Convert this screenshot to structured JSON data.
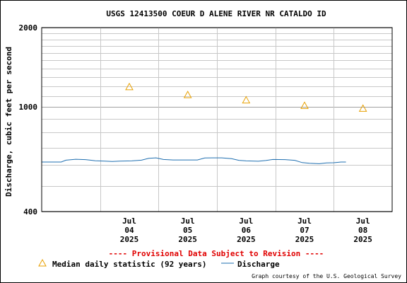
{
  "chart_data": {
    "type": "line",
    "title": "USGS 12413500 COEUR D ALENE RIVER NR CATALDO ID",
    "ylabel": "Discharge, cubic feet per second",
    "yscale": "log",
    "ylim": [
      400,
      2000
    ],
    "y_tick_labels": [
      "2000",
      "1000",
      "400"
    ],
    "y_ticks": [
      2000,
      1000,
      400
    ],
    "y_minor_gridlines": [
      500,
      600,
      700,
      800,
      900,
      1100,
      1200,
      1300,
      1400,
      1500,
      1600,
      1700,
      1800,
      1900
    ],
    "x_ticks": [
      {
        "month": "Jul",
        "day": "04",
        "year": "2025"
      },
      {
        "month": "Jul",
        "day": "05",
        "year": "2025"
      },
      {
        "month": "Jul",
        "day": "06",
        "year": "2025"
      },
      {
        "month": "Jul",
        "day": "07",
        "year": "2025"
      },
      {
        "month": "Jul",
        "day": "08",
        "year": "2025"
      }
    ],
    "xlim": [
      "2025-07-03 00:00",
      "2025-07-09 00:00"
    ],
    "grid": true,
    "legend_position": "bottom",
    "notice": "---- Provisional Data Subject to Revision ----",
    "series": [
      {
        "name": "Median daily statistic (92 years)",
        "marker": "triangle",
        "color": "#E8A000",
        "points": [
          {
            "x": "2025-07-04 12:00",
            "y": 1190
          },
          {
            "x": "2025-07-05 12:00",
            "y": 1110
          },
          {
            "x": "2025-07-06 12:00",
            "y": 1060
          },
          {
            "x": "2025-07-07 12:00",
            "y": 1010
          },
          {
            "x": "2025-07-08 12:00",
            "y": 985
          }
        ]
      },
      {
        "name": "Discharge",
        "marker": "line",
        "color": "#1F6FB0",
        "points": [
          {
            "x": "2025-07-03 00:00",
            "y": 617
          },
          {
            "x": "2025-07-03 08:00",
            "y": 617
          },
          {
            "x": "2025-07-03 10:00",
            "y": 627
          },
          {
            "x": "2025-07-03 14:00",
            "y": 632
          },
          {
            "x": "2025-07-03 18:00",
            "y": 630
          },
          {
            "x": "2025-07-03 22:00",
            "y": 624
          },
          {
            "x": "2025-07-04 02:00",
            "y": 622
          },
          {
            "x": "2025-07-04 05:00",
            "y": 620
          },
          {
            "x": "2025-07-04 08:00",
            "y": 622
          },
          {
            "x": "2025-07-04 13:00",
            "y": 623
          },
          {
            "x": "2025-07-04 17:00",
            "y": 627
          },
          {
            "x": "2025-07-04 20:00",
            "y": 637
          },
          {
            "x": "2025-07-04 23:00",
            "y": 640
          },
          {
            "x": "2025-07-05 02:00",
            "y": 631
          },
          {
            "x": "2025-07-05 06:00",
            "y": 628
          },
          {
            "x": "2025-07-05 12:00",
            "y": 628
          },
          {
            "x": "2025-07-05 16:00",
            "y": 628
          },
          {
            "x": "2025-07-05 19:00",
            "y": 639
          },
          {
            "x": "2025-07-05 22:00",
            "y": 640
          },
          {
            "x": "2025-07-06 02:00",
            "y": 640
          },
          {
            "x": "2025-07-06 06:00",
            "y": 635
          },
          {
            "x": "2025-07-06 09:00",
            "y": 626
          },
          {
            "x": "2025-07-06 12:00",
            "y": 623
          },
          {
            "x": "2025-07-06 17:00",
            "y": 621
          },
          {
            "x": "2025-07-06 20:00",
            "y": 625
          },
          {
            "x": "2025-07-06 23:00",
            "y": 631
          },
          {
            "x": "2025-07-07 04:00",
            "y": 630
          },
          {
            "x": "2025-07-07 08:00",
            "y": 626
          },
          {
            "x": "2025-07-07 11:00",
            "y": 614
          },
          {
            "x": "2025-07-07 14:00",
            "y": 610
          },
          {
            "x": "2025-07-07 18:00",
            "y": 608
          },
          {
            "x": "2025-07-07 21:00",
            "y": 612
          },
          {
            "x": "2025-07-08 00:00",
            "y": 613
          },
          {
            "x": "2025-07-08 03:00",
            "y": 617
          },
          {
            "x": "2025-07-08 05:00",
            "y": 617
          }
        ]
      }
    ]
  },
  "footer": {
    "credit": "Graph courtesy of the U.S. Geological Survey"
  }
}
